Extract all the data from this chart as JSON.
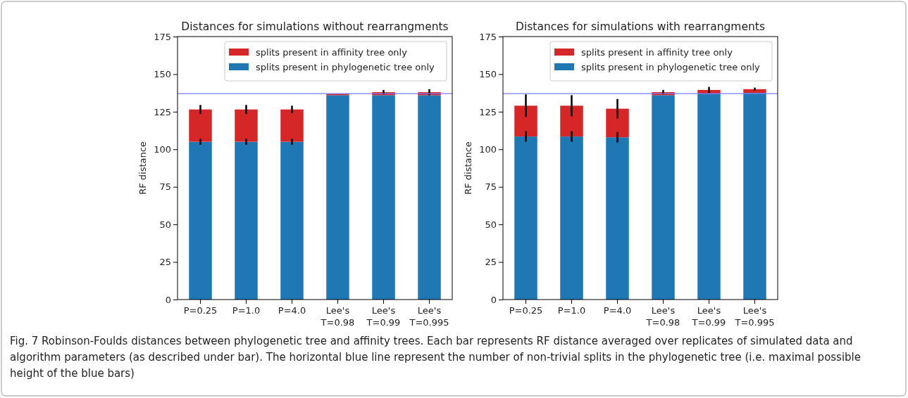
{
  "chart_data": [
    {
      "type": "bar",
      "stacked": true,
      "title": "Distances for simulations without rearrangments",
      "ylabel": "RF distance",
      "categories": [
        "P=0.25",
        "P=1.0",
        "P=4.0",
        "Lee's\nT=0.98",
        "Lee's\nT=0.99",
        "Lee's\nT=0.995"
      ],
      "series": [
        {
          "name": "splits present in phylogenetic tree only",
          "color": "#1f77b4",
          "values": [
            105,
            105,
            105,
            136,
            136,
            136
          ],
          "errors": [
            2,
            2,
            2,
            null,
            null,
            null
          ]
        },
        {
          "name": "splits present in affinity tree only",
          "color": "#d62728",
          "values": [
            21.5,
            21.5,
            21.5,
            1,
            2,
            2
          ],
          "errors": [
            3,
            3,
            2.5,
            null,
            1.5,
            2
          ]
        }
      ],
      "ylim": [
        0,
        175
      ],
      "yticks": [
        0,
        25,
        50,
        75,
        100,
        125,
        150,
        175
      ],
      "legend": "top right",
      "ref_lines": [
        {
          "axis": "y",
          "value": 137,
          "color": "#7b7bff"
        }
      ],
      "annotations": [
        "Fig. 7 Robinson-Foulds distances between phylogenetic tree and affinity trees. Each bar represents RF distance averaged over replicates of simulated data and algorithm parameters (as described under bar). The horizontal blue line represent the number of non-trivial splits in the phylogenetic tree (i.e. maximal possible height of the blue bars)"
      ]
    },
    {
      "type": "bar",
      "stacked": true,
      "title": "Distances for simulations with rearrangments",
      "ylabel": "RF distance",
      "categories": [
        "P=0.25",
        "P=1.0",
        "P=4.0",
        "Lee's\nT=0.98",
        "Lee's\nT=0.99",
        "Lee's\nT=0.995"
      ],
      "series": [
        {
          "name": "splits present in phylogenetic tree only",
          "color": "#1f77b4",
          "values": [
            108.5,
            108.5,
            108,
            136,
            137,
            137.5
          ],
          "errors": [
            3.5,
            3.5,
            3.5,
            null,
            null,
            null
          ]
        },
        {
          "name": "splits present in affinity tree only",
          "color": "#d62728",
          "values": [
            20.5,
            20.5,
            19,
            2,
            2.5,
            2.5
          ],
          "errors": [
            7.5,
            7,
            6.5,
            1.5,
            2,
            1
          ]
        }
      ],
      "ylim": [
        0,
        175
      ],
      "yticks": [
        0,
        25,
        50,
        75,
        100,
        125,
        150,
        175
      ],
      "legend": "top right",
      "ref_lines": [
        {
          "axis": "y",
          "value": 137,
          "color": "#7b7bff"
        }
      ]
    }
  ]
}
